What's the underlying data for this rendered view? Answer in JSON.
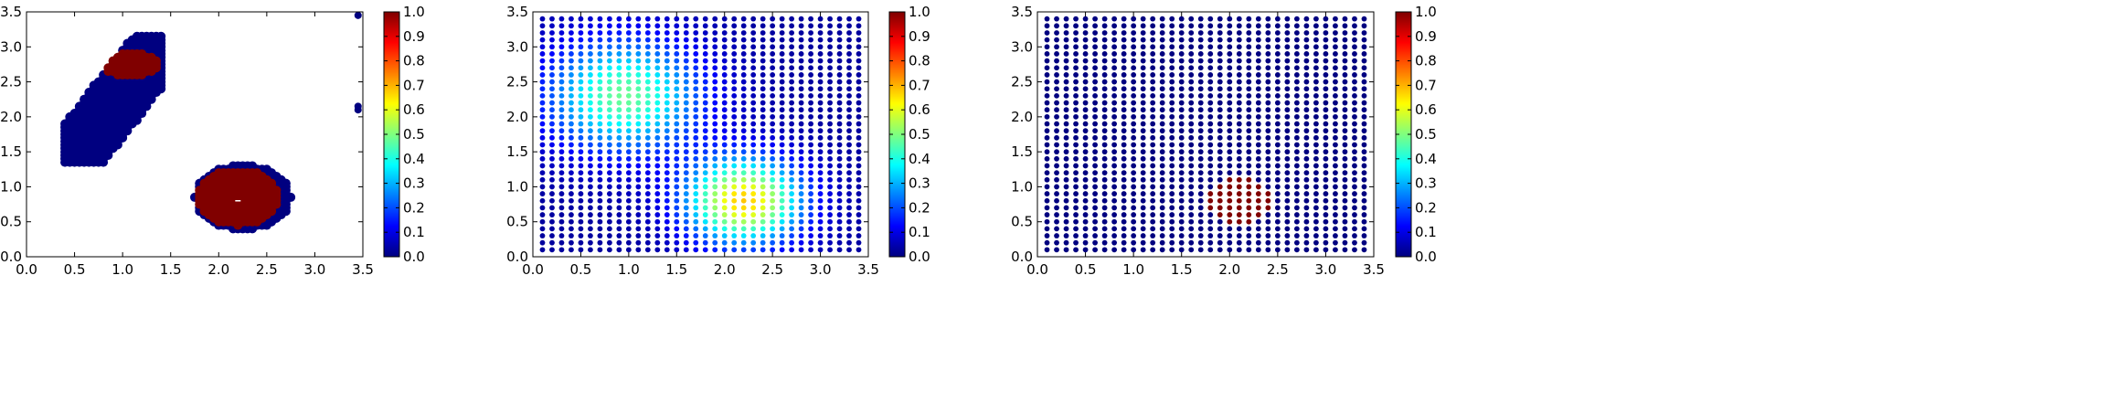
{
  "figure": {
    "background": "#ffffff"
  },
  "colormap": {
    "name": "jet",
    "stops": [
      "#00007f",
      "#0000ff",
      "#007fff",
      "#00ffff",
      "#7fff7f",
      "#ffff00",
      "#ff7f00",
      "#ff0000",
      "#7f0000"
    ]
  },
  "chart_data": [
    {
      "type": "scatter",
      "title": "",
      "xlabel": "",
      "ylabel": "",
      "xlim": [
        0.0,
        3.5
      ],
      "ylim": [
        0.0,
        3.5
      ],
      "xticks": [
        "0.0",
        "0.5",
        "1.0",
        "1.5",
        "2.0",
        "2.5",
        "3.0",
        "3.5"
      ],
      "yticks": [
        "0.0",
        "0.5",
        "1.0",
        "1.5",
        "2.0",
        "2.5",
        "3.0",
        "3.5"
      ],
      "grid": false,
      "colorbar": {
        "ticks": [
          "0.0",
          "0.1",
          "0.2",
          "0.3",
          "0.4",
          "0.5",
          "0.6",
          "0.7",
          "0.8",
          "0.9",
          "1.0"
        ],
        "range": [
          0.0,
          1.0
        ]
      },
      "description": "Two clusters of sampled points colored 0 (dark blue) or 1 (dark red), plus isolated points near x=3.45",
      "series": [
        {
          "values_encoding": "clusters",
          "clusters": [
            {
              "center": [
                0.95,
                2.2
              ],
              "shape": "tilted ellipse",
              "long_axis": [
                [
                  0.5,
                  1.45
                ],
                [
                  1.35,
                  2.95
                ]
              ],
              "half_width": 0.32,
              "value": 0
            },
            {
              "center": [
                1.08,
                2.75
              ],
              "shape": "ellipse",
              "radii": [
                0.3,
                0.17
              ],
              "value": 1
            },
            {
              "center": [
                2.25,
                0.85
              ],
              "shape": "ellipse",
              "radii": [
                0.5,
                0.47
              ],
              "value": 0
            },
            {
              "center": [
                2.2,
                0.85
              ],
              "shape": "ellipse",
              "radii": [
                0.42,
                0.4
              ],
              "value": 1
            }
          ],
          "isolated_points": [
            {
              "x": 3.45,
              "y": 3.45,
              "value": 0
            },
            {
              "x": 3.45,
              "y": 2.15,
              "value": 0
            },
            {
              "x": 3.45,
              "y": 2.1,
              "value": 0
            }
          ],
          "marker": {
            "x": 2.2,
            "y": 0.8,
            "color": "#ffffff"
          }
        }
      ]
    },
    {
      "type": "scatter",
      "title": "",
      "xlabel": "",
      "ylabel": "",
      "xlim": [
        0.0,
        3.5
      ],
      "ylim": [
        0.0,
        3.5
      ],
      "xticks": [
        "0.0",
        "0.5",
        "1.0",
        "1.5",
        "2.0",
        "2.5",
        "3.0",
        "3.5"
      ],
      "yticks": [
        "0.0",
        "0.5",
        "1.0",
        "1.5",
        "2.0",
        "2.5",
        "3.0",
        "3.5"
      ],
      "grid": false,
      "colorbar": {
        "ticks": [
          "0.0",
          "0.1",
          "0.2",
          "0.3",
          "0.4",
          "0.5",
          "0.6",
          "0.7",
          "0.8",
          "0.9",
          "1.0"
        ],
        "range": [
          0.0,
          1.0
        ]
      },
      "description": "Regular grid of points colored by a smooth field with two peaks",
      "series": [
        {
          "grid": {
            "x_start": 0.1,
            "x_step": 0.1,
            "x_count": 34,
            "y_start": 0.1,
            "y_step": 0.1,
            "y_count": 34
          },
          "field": {
            "peaks": [
              {
                "center": [
                  2.2,
                  0.8
                ],
                "amplitude": 0.65,
                "sigma": 0.42
              },
              {
                "center": [
                  0.95,
                  2.3
                ],
                "amplitude": 0.45,
                "sigma": 0.55
              }
            ],
            "baseline": 0.03,
            "max": 0.7
          }
        }
      ]
    },
    {
      "type": "scatter",
      "title": "",
      "xlabel": "",
      "ylabel": "",
      "xlim": [
        0.0,
        3.5
      ],
      "ylim": [
        0.0,
        3.5
      ],
      "xticks": [
        "0.0",
        "0.5",
        "1.0",
        "1.5",
        "2.0",
        "2.5",
        "3.0",
        "3.5"
      ],
      "yticks": [
        "0.0",
        "0.5",
        "1.0",
        "1.5",
        "2.0",
        "2.5",
        "3.0",
        "3.5"
      ],
      "grid": false,
      "colorbar": {
        "ticks": [
          "0.0",
          "0.1",
          "0.2",
          "0.3",
          "0.4",
          "0.5",
          "0.6",
          "0.7",
          "0.8",
          "0.9",
          "1.0"
        ],
        "range": [
          0.0,
          1.0
        ]
      },
      "description": "Regular grid of points, value 0 everywhere except a small disc near (2.1, 0.8) with value 1",
      "series": [
        {
          "grid": {
            "x_start": 0.1,
            "x_step": 0.1,
            "x_count": 34,
            "y_start": 0.1,
            "y_step": 0.1,
            "y_count": 34
          },
          "hot_region": {
            "center": [
              2.1,
              0.8
            ],
            "radius": 0.34,
            "value": 1
          }
        }
      ]
    }
  ]
}
